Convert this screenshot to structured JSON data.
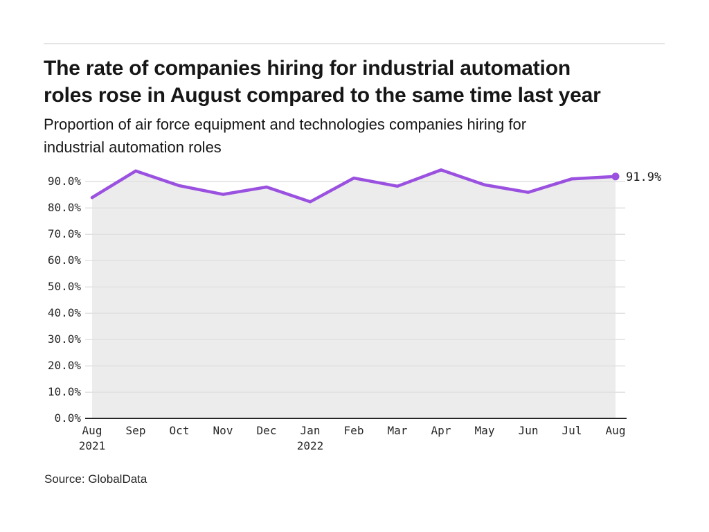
{
  "header": {
    "title_lines": [
      "The rate of companies hiring for industrial automation",
      "roles rose in August compared to the same time last year"
    ],
    "subtitle_lines": [
      "Proportion of air force equipment and technologies companies hiring for",
      "industrial automation roles"
    ]
  },
  "footer": {
    "source": "Source: GlobalData"
  },
  "chart_data": {
    "type": "line",
    "title": "The rate of companies hiring for industrial automation roles rose in August compared to the same time last year",
    "subtitle": "Proportion of air force equipment and technologies companies hiring for industrial automation roles",
    "categories": [
      "Aug 2021",
      "Sep",
      "Oct",
      "Nov",
      "Dec",
      "Jan 2022",
      "Feb",
      "Mar",
      "Apr",
      "May",
      "Jun",
      "Jul",
      "Aug"
    ],
    "x_tick_lines": [
      [
        "Aug",
        "2021"
      ],
      [
        "Sep"
      ],
      [
        "Oct"
      ],
      [
        "Nov"
      ],
      [
        "Dec"
      ],
      [
        "Jan",
        "2022"
      ],
      [
        "Feb"
      ],
      [
        "Mar"
      ],
      [
        "Apr"
      ],
      [
        "May"
      ],
      [
        "Jun"
      ],
      [
        "Jul"
      ],
      [
        "Aug"
      ]
    ],
    "values": [
      83.9,
      94.0,
      88.4,
      85.1,
      87.9,
      82.3,
      91.3,
      88.2,
      94.4,
      88.7,
      85.9,
      91.0,
      91.9
    ],
    "end_label": "91.9%",
    "y_ticks": [
      0,
      10,
      20,
      30,
      40,
      50,
      60,
      70,
      80,
      90
    ],
    "y_tick_labels": [
      "0.0%",
      "10.0%",
      "20.0%",
      "30.0%",
      "40.0%",
      "50.0%",
      "60.0%",
      "70.0%",
      "80.0%",
      "90.0%"
    ],
    "ylim": [
      0,
      97.5
    ],
    "xlabel": "",
    "ylabel": "",
    "grid": true,
    "legend": "none",
    "area_filled": true,
    "colors": {
      "line": "#9b51e0",
      "area": "#ececec",
      "grid": "#e1e1e1",
      "axis": "#262626",
      "text": "#1a1a1a"
    }
  }
}
